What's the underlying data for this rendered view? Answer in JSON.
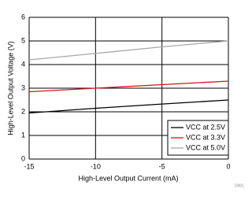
{
  "chart_data": {
    "type": "line",
    "x_label": "High-Level Output Current (mA)",
    "y_label": "High-Level Output Voltage (V)",
    "note": "D001",
    "x": [
      -15,
      -10,
      -5,
      0
    ],
    "series": [
      {
        "name": "VCC at 2.5V",
        "color": "#000000",
        "values": [
          1.95,
          2.15,
          2.33,
          2.5
        ]
      },
      {
        "name": "VCC at 3.3V",
        "color": "#d4141c",
        "values": [
          2.85,
          3.0,
          3.15,
          3.3
        ]
      },
      {
        "name": "VCC at 5.0V",
        "color": "#a8a8a8",
        "values": [
          4.2,
          4.47,
          4.75,
          5.0
        ]
      }
    ],
    "xlim": [
      -15,
      0
    ],
    "xticks": [
      -15,
      -10,
      -5,
      0
    ],
    "ylim": [
      0,
      6
    ],
    "yticks": [
      0,
      1,
      2,
      3,
      4,
      5,
      6
    ],
    "grid": true,
    "legend": "lower right"
  }
}
